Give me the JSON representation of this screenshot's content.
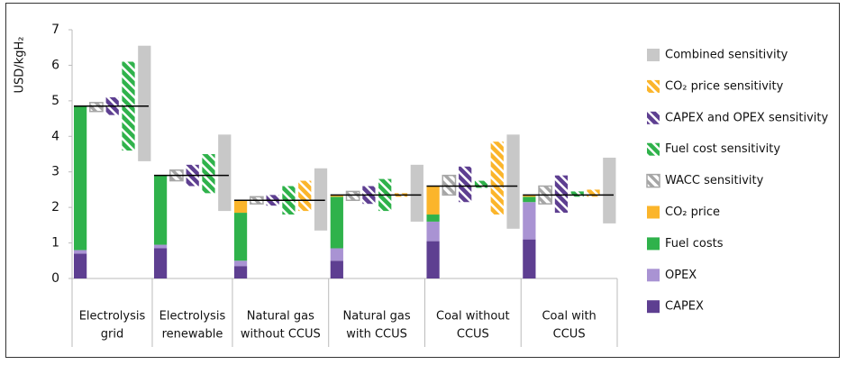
{
  "chart_data": {
    "type": "bar",
    "y_label": "USD/kgH₂",
    "categories": [
      [
        "Electrolysis",
        "grid"
      ],
      [
        "Electrolysis",
        "renewable"
      ],
      [
        "Natural gas",
        "without CCUS"
      ],
      [
        "Natural gas",
        "with CCUS"
      ],
      [
        "Coal without",
        "CCUS"
      ],
      [
        "Coal with",
        "CCUS"
      ]
    ],
    "ylim": [
      0,
      7
    ],
    "yticks": [
      0,
      1,
      2,
      3,
      4,
      5,
      6,
      7
    ],
    "series": [
      {
        "name": "CAPEX",
        "color": "#5e3f91",
        "values": [
          0.7,
          0.85,
          0.35,
          0.5,
          1.05,
          1.1
        ]
      },
      {
        "name": "OPEX",
        "color": "#a993d3",
        "values": [
          0.1,
          0.1,
          0.15,
          0.35,
          0.55,
          1.05
        ]
      },
      {
        "name": "Fuel costs",
        "color": "#2fb24b",
        "values": [
          4.05,
          1.95,
          1.35,
          1.45,
          0.2,
          0.15
        ]
      },
      {
        "name": "CO₂ price",
        "color": "#fbb52b",
        "values": [
          0,
          0,
          0.35,
          0.05,
          0.8,
          0.05
        ]
      }
    ],
    "ranges": [
      {
        "name": "WACC sensitivity",
        "color": "#a6a6a6",
        "hatched": true,
        "outline": true,
        "values": [
          [
            4.7,
            4.95
          ],
          [
            2.75,
            3.05
          ],
          [
            2.1,
            2.3
          ],
          [
            2.2,
            2.45
          ],
          [
            2.35,
            2.9
          ],
          [
            2.1,
            2.6
          ]
        ]
      },
      {
        "name": "Fuel cost sensitivity",
        "color": "#2fb24b",
        "hatched": true,
        "outline": false,
        "values": [
          [
            3.6,
            6.1
          ],
          [
            2.4,
            3.5
          ],
          [
            1.8,
            2.6
          ],
          [
            1.9,
            2.8
          ],
          [
            2.55,
            2.75
          ],
          [
            2.3,
            2.45
          ]
        ]
      },
      {
        "name": "CAPEX and OPEX sensitivity",
        "color": "#5e3f91",
        "hatched": true,
        "outline": false,
        "values": [
          [
            4.6,
            5.1
          ],
          [
            2.6,
            3.2
          ],
          [
            2.05,
            2.35
          ],
          [
            2.1,
            2.6
          ],
          [
            2.15,
            3.15
          ],
          [
            1.85,
            2.9
          ]
        ]
      },
      {
        "name": "CO₂ price sensitivity",
        "color": "#fbb52b",
        "hatched": true,
        "outline": false,
        "values": [
          null,
          null,
          [
            1.9,
            2.75
          ],
          [
            2.3,
            2.4
          ],
          [
            1.8,
            3.85
          ],
          [
            2.3,
            2.5
          ]
        ]
      },
      {
        "name": "Combined sensitivity",
        "color": "#c8c8c8",
        "hatched": false,
        "outline": false,
        "values": [
          [
            3.3,
            6.55
          ],
          [
            1.9,
            4.05
          ],
          [
            1.35,
            3.1
          ],
          [
            1.6,
            3.2
          ],
          [
            1.4,
            4.05
          ],
          [
            1.55,
            3.4
          ]
        ]
      }
    ]
  }
}
